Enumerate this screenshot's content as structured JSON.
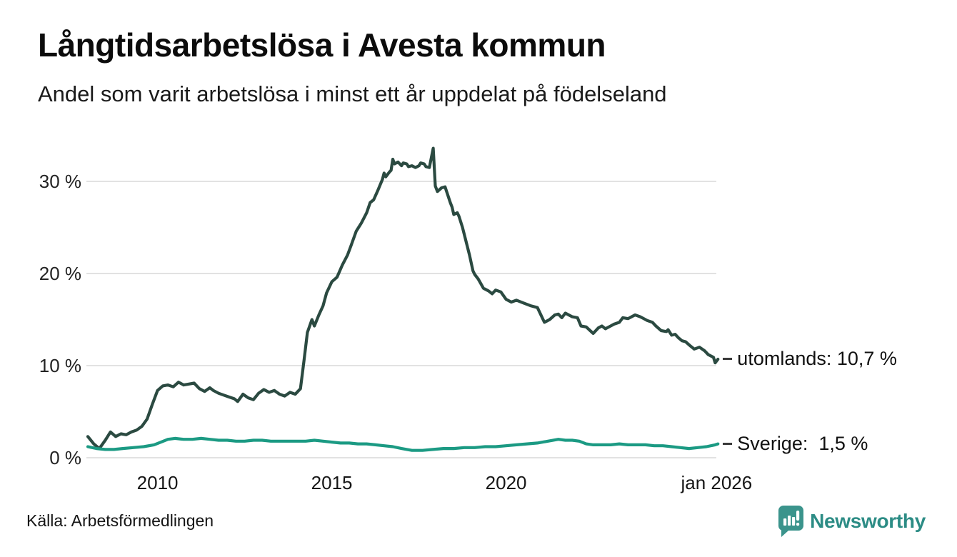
{
  "header": {
    "title": "Långtidsarbetslösa i Avesta kommun",
    "subtitle": "Andel som varit arbetslösa i minst ett år uppdelat på födelseland"
  },
  "footer": {
    "source": "Källa: Arbetsförmedlingen",
    "brand": "Newsworthy"
  },
  "colors": {
    "utomlands_line": "#2b4a41",
    "sverige_line": "#1b9a83",
    "gridline": "#e2e2e2",
    "label_dash": "#3a3a3a",
    "brand_teal": "#3b948c",
    "brand_text_teal": "#2c8c85"
  },
  "chart_data": {
    "type": "line",
    "title": "Långtidsarbetslösa i Avesta kommun",
    "subtitle": "Andel som varit arbetslösa i minst ett år uppdelat på födelseland",
    "source": "Källa: Arbetsförmedlingen",
    "grid": true,
    "legend_position": "right-end-labels",
    "x_axis": {
      "range": [
        2008,
        2026.2
      ],
      "ticks": [
        {
          "label": "2010",
          "year": 2010
        },
        {
          "label": "2015",
          "year": 2015
        },
        {
          "label": "2020",
          "year": 2020
        },
        {
          "label": "jan 2026",
          "year": 2026.04
        }
      ]
    },
    "y_axis": {
      "unit": "%",
      "range": [
        0,
        35
      ],
      "ticks": [
        {
          "label": "0 %",
          "value": 0
        },
        {
          "label": "10 %",
          "value": 10
        },
        {
          "label": "20 %",
          "value": 20
        },
        {
          "label": "30 %",
          "value": 30
        }
      ]
    },
    "series": [
      {
        "name": "utomlands",
        "end_label": "utomlands: 10,7 %",
        "last_value": 10.7,
        "color": "#2b4a41",
        "points": [
          [
            2008.0,
            2.3
          ],
          [
            2008.17,
            1.5
          ],
          [
            2008.33,
            1.0
          ],
          [
            2008.5,
            1.9
          ],
          [
            2008.65,
            2.8
          ],
          [
            2008.8,
            2.3
          ],
          [
            2008.95,
            2.6
          ],
          [
            2009.1,
            2.5
          ],
          [
            2009.25,
            2.8
          ],
          [
            2009.4,
            3.0
          ],
          [
            2009.55,
            3.4
          ],
          [
            2009.7,
            4.2
          ],
          [
            2009.85,
            5.8
          ],
          [
            2010.0,
            7.3
          ],
          [
            2010.15,
            7.8
          ],
          [
            2010.3,
            7.9
          ],
          [
            2010.45,
            7.7
          ],
          [
            2010.6,
            8.2
          ],
          [
            2010.75,
            7.9
          ],
          [
            2010.9,
            8.0
          ],
          [
            2011.05,
            8.1
          ],
          [
            2011.2,
            7.5
          ],
          [
            2011.35,
            7.2
          ],
          [
            2011.5,
            7.6
          ],
          [
            2011.6,
            7.3
          ],
          [
            2011.75,
            7.0
          ],
          [
            2011.9,
            6.8
          ],
          [
            2012.05,
            6.6
          ],
          [
            2012.2,
            6.4
          ],
          [
            2012.3,
            6.1
          ],
          [
            2012.45,
            6.9
          ],
          [
            2012.6,
            6.5
          ],
          [
            2012.75,
            6.3
          ],
          [
            2012.9,
            7.0
          ],
          [
            2013.05,
            7.4
          ],
          [
            2013.2,
            7.1
          ],
          [
            2013.35,
            7.3
          ],
          [
            2013.5,
            6.9
          ],
          [
            2013.65,
            6.7
          ],
          [
            2013.8,
            7.1
          ],
          [
            2013.95,
            6.9
          ],
          [
            2014.1,
            7.5
          ],
          [
            2014.2,
            10.5
          ],
          [
            2014.3,
            13.6
          ],
          [
            2014.43,
            15.0
          ],
          [
            2014.5,
            14.3
          ],
          [
            2014.63,
            15.5
          ],
          [
            2014.75,
            16.5
          ],
          [
            2014.85,
            17.9
          ],
          [
            2015.0,
            19.1
          ],
          [
            2015.15,
            19.6
          ],
          [
            2015.3,
            20.9
          ],
          [
            2015.45,
            22.0
          ],
          [
            2015.55,
            23.0
          ],
          [
            2015.7,
            24.6
          ],
          [
            2015.85,
            25.5
          ],
          [
            2016.0,
            26.6
          ],
          [
            2016.1,
            27.7
          ],
          [
            2016.2,
            28.0
          ],
          [
            2016.33,
            29.1
          ],
          [
            2016.45,
            30.2
          ],
          [
            2016.5,
            30.9
          ],
          [
            2016.55,
            30.5
          ],
          [
            2016.65,
            31.0
          ],
          [
            2016.7,
            31.2
          ],
          [
            2016.75,
            32.4
          ],
          [
            2016.8,
            31.9
          ],
          [
            2016.9,
            32.1
          ],
          [
            2017.0,
            31.7
          ],
          [
            2017.05,
            32.0
          ],
          [
            2017.15,
            31.9
          ],
          [
            2017.2,
            31.6
          ],
          [
            2017.3,
            31.7
          ],
          [
            2017.4,
            31.5
          ],
          [
            2017.5,
            31.7
          ],
          [
            2017.55,
            32.0
          ],
          [
            2017.65,
            31.9
          ],
          [
            2017.7,
            31.6
          ],
          [
            2017.8,
            31.5
          ],
          [
            2017.91,
            33.6
          ],
          [
            2017.97,
            29.5
          ],
          [
            2018.03,
            28.9
          ],
          [
            2018.15,
            29.3
          ],
          [
            2018.25,
            29.4
          ],
          [
            2018.4,
            27.7
          ],
          [
            2018.45,
            27.2
          ],
          [
            2018.5,
            26.4
          ],
          [
            2018.6,
            26.6
          ],
          [
            2018.65,
            26.2
          ],
          [
            2018.75,
            25.0
          ],
          [
            2018.85,
            23.5
          ],
          [
            2018.95,
            22.0
          ],
          [
            2019.05,
            20.3
          ],
          [
            2019.1,
            19.9
          ],
          [
            2019.2,
            19.4
          ],
          [
            2019.35,
            18.4
          ],
          [
            2019.5,
            18.1
          ],
          [
            2019.6,
            17.8
          ],
          [
            2019.7,
            18.2
          ],
          [
            2019.85,
            18.0
          ],
          [
            2020.0,
            17.2
          ],
          [
            2020.15,
            16.9
          ],
          [
            2020.3,
            17.1
          ],
          [
            2020.5,
            16.8
          ],
          [
            2020.7,
            16.5
          ],
          [
            2020.9,
            16.3
          ],
          [
            2021.1,
            14.7
          ],
          [
            2021.25,
            15.0
          ],
          [
            2021.4,
            15.5
          ],
          [
            2021.5,
            15.6
          ],
          [
            2021.6,
            15.2
          ],
          [
            2021.7,
            15.7
          ],
          [
            2021.9,
            15.3
          ],
          [
            2022.05,
            15.2
          ],
          [
            2022.15,
            14.3
          ],
          [
            2022.3,
            14.2
          ],
          [
            2022.5,
            13.5
          ],
          [
            2022.65,
            14.1
          ],
          [
            2022.75,
            14.3
          ],
          [
            2022.85,
            14.0
          ],
          [
            2022.95,
            14.2
          ],
          [
            2023.1,
            14.5
          ],
          [
            2023.25,
            14.7
          ],
          [
            2023.35,
            15.2
          ],
          [
            2023.5,
            15.1
          ],
          [
            2023.7,
            15.5
          ],
          [
            2023.85,
            15.3
          ],
          [
            2023.95,
            15.1
          ],
          [
            2024.05,
            14.9
          ],
          [
            2024.2,
            14.7
          ],
          [
            2024.3,
            14.3
          ],
          [
            2024.45,
            13.8
          ],
          [
            2024.6,
            13.7
          ],
          [
            2024.65,
            13.9
          ],
          [
            2024.75,
            13.3
          ],
          [
            2024.85,
            13.4
          ],
          [
            2024.95,
            13.0
          ],
          [
            2025.05,
            12.7
          ],
          [
            2025.15,
            12.6
          ],
          [
            2025.3,
            12.1
          ],
          [
            2025.4,
            11.8
          ],
          [
            2025.55,
            12.0
          ],
          [
            2025.7,
            11.6
          ],
          [
            2025.8,
            11.2
          ],
          [
            2025.95,
            10.9
          ],
          [
            2026.0,
            10.3
          ],
          [
            2026.08,
            10.7
          ]
        ]
      },
      {
        "name": "Sverige",
        "end_label": "Sverige:  1,5 %",
        "last_value": 1.5,
        "color": "#1b9a83",
        "points": [
          [
            2008.0,
            1.2
          ],
          [
            2008.25,
            1.0
          ],
          [
            2008.5,
            0.9
          ],
          [
            2008.75,
            0.9
          ],
          [
            2009.0,
            1.0
          ],
          [
            2009.3,
            1.1
          ],
          [
            2009.6,
            1.2
          ],
          [
            2009.9,
            1.4
          ],
          [
            2010.1,
            1.7
          ],
          [
            2010.3,
            2.0
          ],
          [
            2010.5,
            2.1
          ],
          [
            2010.75,
            2.0
          ],
          [
            2011.0,
            2.0
          ],
          [
            2011.25,
            2.1
          ],
          [
            2011.5,
            2.0
          ],
          [
            2011.75,
            1.9
          ],
          [
            2012.0,
            1.9
          ],
          [
            2012.25,
            1.8
          ],
          [
            2012.5,
            1.8
          ],
          [
            2012.75,
            1.9
          ],
          [
            2013.0,
            1.9
          ],
          [
            2013.25,
            1.8
          ],
          [
            2013.5,
            1.8
          ],
          [
            2013.75,
            1.8
          ],
          [
            2014.0,
            1.8
          ],
          [
            2014.25,
            1.8
          ],
          [
            2014.5,
            1.9
          ],
          [
            2014.75,
            1.8
          ],
          [
            2015.0,
            1.7
          ],
          [
            2015.25,
            1.6
          ],
          [
            2015.5,
            1.6
          ],
          [
            2015.75,
            1.5
          ],
          [
            2016.0,
            1.5
          ],
          [
            2016.25,
            1.4
          ],
          [
            2016.5,
            1.3
          ],
          [
            2016.75,
            1.2
          ],
          [
            2017.0,
            1.0
          ],
          [
            2017.3,
            0.8
          ],
          [
            2017.6,
            0.8
          ],
          [
            2017.9,
            0.9
          ],
          [
            2018.2,
            1.0
          ],
          [
            2018.5,
            1.0
          ],
          [
            2018.8,
            1.1
          ],
          [
            2019.1,
            1.1
          ],
          [
            2019.4,
            1.2
          ],
          [
            2019.7,
            1.2
          ],
          [
            2020.0,
            1.3
          ],
          [
            2020.3,
            1.4
          ],
          [
            2020.6,
            1.5
          ],
          [
            2020.9,
            1.6
          ],
          [
            2021.2,
            1.8
          ],
          [
            2021.5,
            2.0
          ],
          [
            2021.7,
            1.9
          ],
          [
            2021.9,
            1.9
          ],
          [
            2022.1,
            1.8
          ],
          [
            2022.3,
            1.5
          ],
          [
            2022.5,
            1.4
          ],
          [
            2022.75,
            1.4
          ],
          [
            2023.0,
            1.4
          ],
          [
            2023.25,
            1.5
          ],
          [
            2023.5,
            1.4
          ],
          [
            2023.75,
            1.4
          ],
          [
            2024.0,
            1.4
          ],
          [
            2024.25,
            1.3
          ],
          [
            2024.5,
            1.3
          ],
          [
            2024.75,
            1.2
          ],
          [
            2025.0,
            1.1
          ],
          [
            2025.25,
            1.0
          ],
          [
            2025.5,
            1.1
          ],
          [
            2025.75,
            1.2
          ],
          [
            2026.0,
            1.4
          ],
          [
            2026.08,
            1.5
          ]
        ]
      }
    ]
  }
}
